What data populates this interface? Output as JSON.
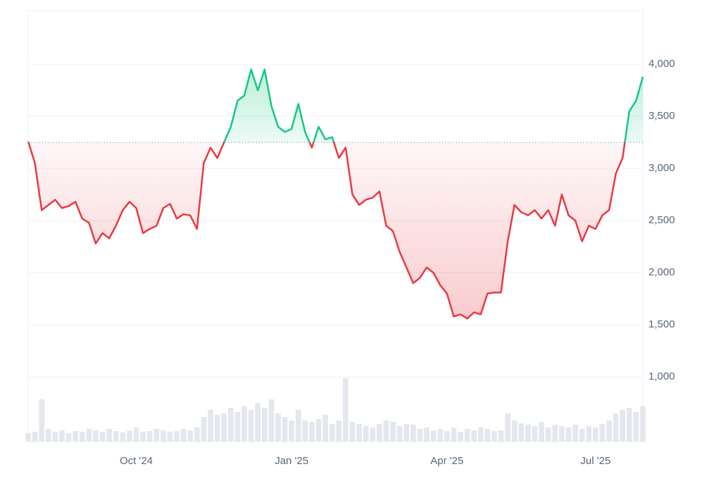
{
  "chart_data": {
    "type": "line",
    "categories": [
      null,
      null,
      null,
      null,
      null,
      null,
      null,
      null,
      null,
      null,
      null,
      null,
      null,
      null,
      null,
      null,
      "Oct '24",
      null,
      null,
      null,
      null,
      null,
      null,
      null,
      null,
      null,
      null,
      null,
      null,
      null,
      null,
      null,
      null,
      null,
      null,
      null,
      null,
      null,
      null,
      "Jan '25",
      null,
      null,
      null,
      null,
      null,
      null,
      null,
      null,
      null,
      null,
      null,
      null,
      null,
      null,
      null,
      null,
      null,
      null,
      null,
      null,
      null,
      null,
      "Apr '25",
      null,
      null,
      null,
      null,
      null,
      null,
      null,
      null,
      null,
      null,
      null,
      null,
      null,
      null,
      null,
      null,
      null,
      null,
      null,
      null,
      null,
      "Jul '25",
      null,
      null,
      null,
      null,
      null,
      null,
      null
    ],
    "series": [
      {
        "color_up": "#16c784",
        "color_down": "#ea3943",
        "values": [
          3260,
          3050,
          2600,
          2650,
          2700,
          2620,
          2640,
          2680,
          2520,
          2480,
          2280,
          2380,
          2330,
          2450,
          2600,
          2680,
          2620,
          2380,
          2420,
          2450,
          2620,
          2660,
          2520,
          2560,
          2550,
          2420,
          3050,
          3200,
          3100,
          3250,
          3400,
          3650,
          3700,
          3950,
          3750,
          3950,
          3600,
          3400,
          3350,
          3380,
          3620,
          3350,
          3200,
          3400,
          3280,
          3300,
          3100,
          3200,
          2750,
          2650,
          2700,
          2720,
          2780,
          2450,
          2400,
          2200,
          2050,
          1900,
          1950,
          2050,
          2000,
          1880,
          1800,
          1580,
          1600,
          1560,
          1620,
          1600,
          1800,
          1810,
          1810,
          2300,
          2650,
          2580,
          2550,
          2600,
          2520,
          2600,
          2450,
          2750,
          2550,
          2500,
          2300,
          2450,
          2420,
          2550,
          2600,
          2950,
          3100,
          3550,
          3650,
          3880
        ]
      }
    ],
    "baseline": 3250,
    "volume": {
      "color": "#e4e8ee",
      "values": [
        12,
        14,
        60,
        18,
        14,
        16,
        12,
        15,
        14,
        18,
        16,
        14,
        18,
        15,
        13,
        16,
        20,
        14,
        15,
        18,
        16,
        14,
        15,
        18,
        16,
        20,
        35,
        45,
        38,
        40,
        48,
        42,
        50,
        45,
        55,
        48,
        60,
        40,
        35,
        30,
        45,
        30,
        28,
        32,
        38,
        25,
        30,
        90,
        28,
        25,
        22,
        20,
        25,
        30,
        28,
        22,
        25,
        24,
        18,
        20,
        16,
        18,
        15,
        20,
        14,
        18,
        16,
        20,
        18,
        15,
        16,
        40,
        30,
        26,
        24,
        22,
        28,
        20,
        24,
        22,
        20,
        24,
        18,
        22,
        20,
        25,
        30,
        40,
        45,
        48,
        42,
        50
      ]
    },
    "ylim": [
      380,
      4515
    ],
    "yticks": [
      {
        "value": 1000,
        "label": "1,000"
      },
      {
        "value": 1500,
        "label": "1,500"
      },
      {
        "value": 2000,
        "label": "2,000"
      },
      {
        "value": 2500,
        "label": "2,500"
      },
      {
        "value": 3000,
        "label": "3,000"
      },
      {
        "value": 3500,
        "label": "3,500"
      },
      {
        "value": 4000,
        "label": "4,000"
      }
    ],
    "grid": true
  }
}
